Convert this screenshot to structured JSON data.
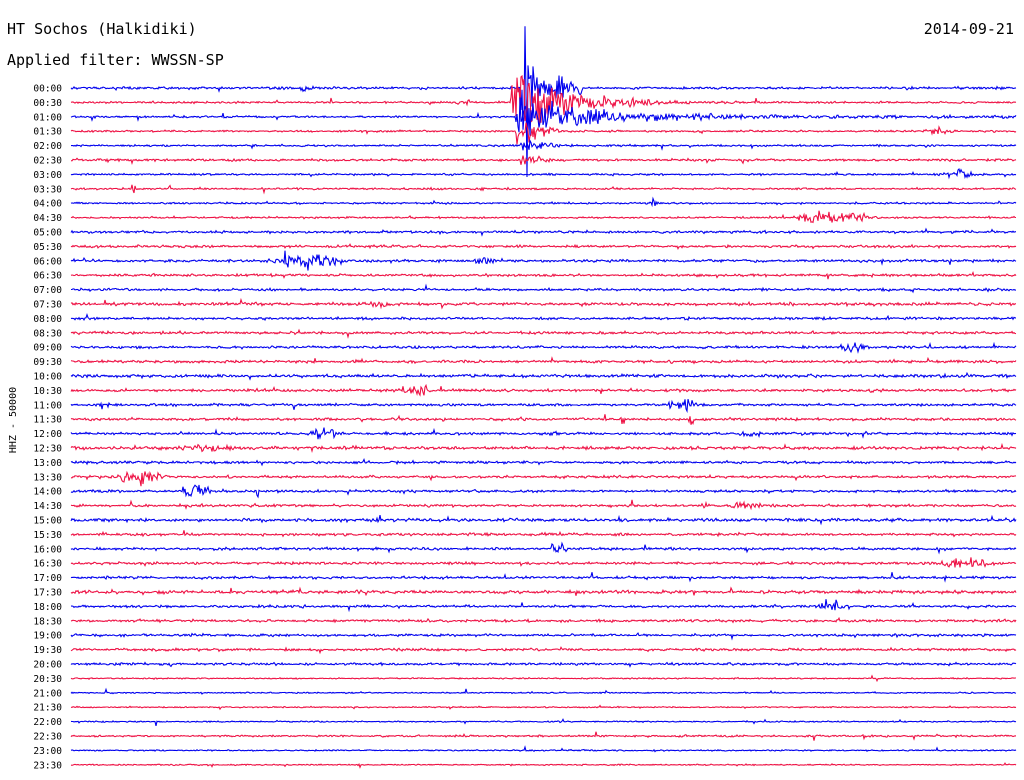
{
  "header": {
    "station": "HT Sochos (Halkidiki)",
    "filter": "Applied filter: WWSSN-SP",
    "date": "2014-09-21"
  },
  "chart_data": {
    "type": "line",
    "ylabel": "HHZ - 50000",
    "rows": [
      "00:00",
      "00:30",
      "01:00",
      "01:30",
      "02:00",
      "02:30",
      "03:00",
      "03:30",
      "04:00",
      "04:30",
      "05:00",
      "05:30",
      "06:00",
      "06:30",
      "07:00",
      "07:30",
      "08:00",
      "08:30",
      "09:00",
      "09:30",
      "10:00",
      "10:30",
      "11:00",
      "11:30",
      "12:00",
      "12:30",
      "13:00",
      "13:30",
      "14:00",
      "14:30",
      "15:00",
      "15:30",
      "16:00",
      "16:30",
      "17:00",
      "17:30",
      "18:00",
      "18:30",
      "19:00",
      "19:30",
      "20:00",
      "20:30",
      "21:00",
      "21:30",
      "22:00",
      "22:30",
      "23:00",
      "23:30"
    ],
    "trace_colors": [
      "#0000ee",
      "#ee1144"
    ]
  }
}
